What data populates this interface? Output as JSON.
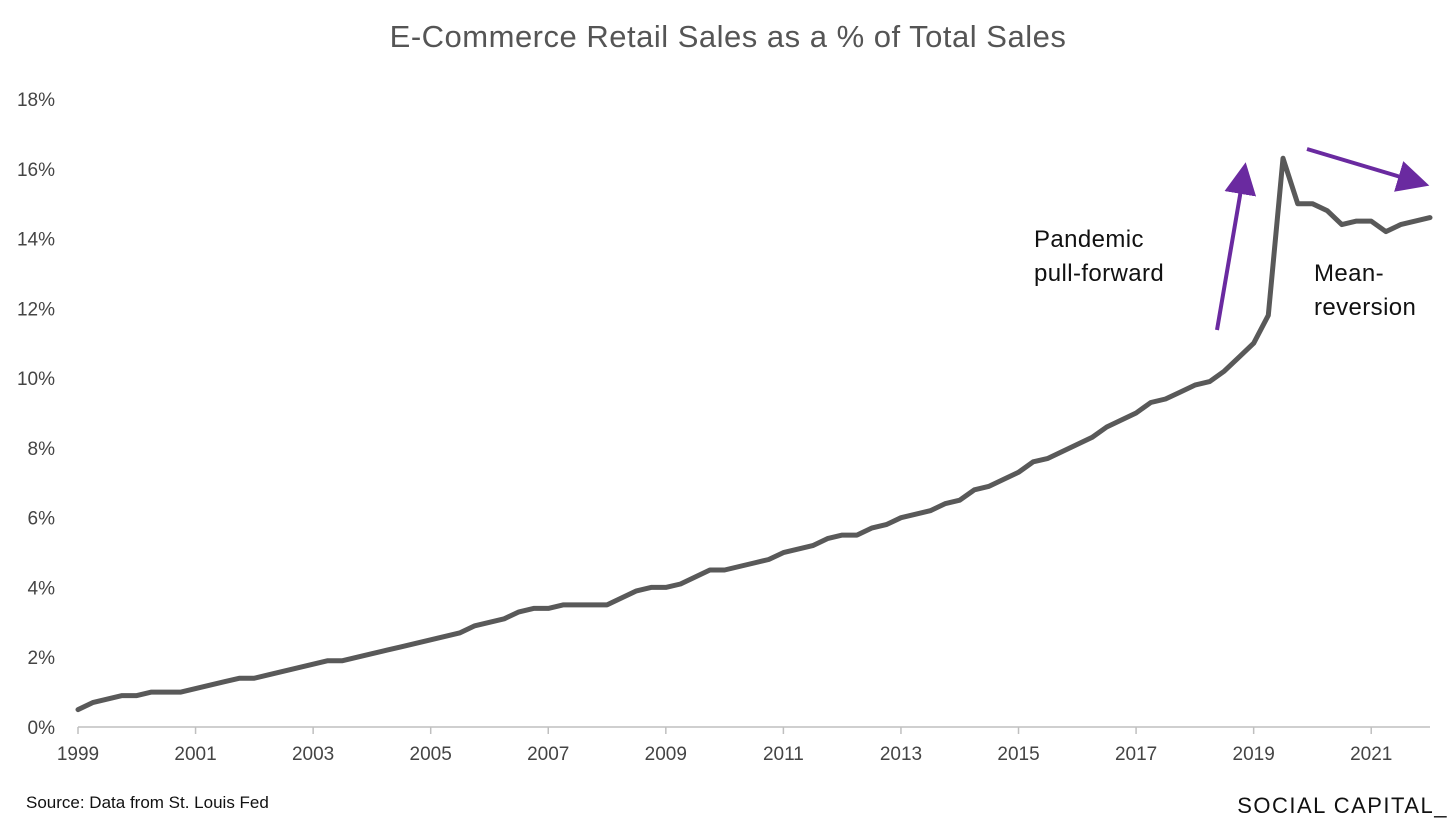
{
  "chart_data": {
    "type": "line",
    "title": "E-Commerce Retail Sales as a % of Total Sales",
    "xlabel": "",
    "ylabel": "",
    "ylim": [
      0,
      18
    ],
    "y_ticks": [
      0,
      2,
      4,
      6,
      8,
      10,
      12,
      14,
      16,
      18
    ],
    "y_tick_labels": [
      "0%",
      "2%",
      "4%",
      "6%",
      "8%",
      "10%",
      "12%",
      "14%",
      "16%",
      "18%"
    ],
    "x_ticks": [
      1999,
      2001,
      2003,
      2005,
      2007,
      2009,
      2011,
      2013,
      2015,
      2017,
      2019,
      2021
    ],
    "x_tick_labels": [
      "1999",
      "2001",
      "2003",
      "2005",
      "2007",
      "2009",
      "2011",
      "2013",
      "2015",
      "2017",
      "2019",
      "2021"
    ],
    "xlim": [
      1999,
      2022
    ],
    "grid": false,
    "line_color": "#595959",
    "series": [
      {
        "x": [
          1999.0,
          1999.25,
          1999.5,
          1999.75,
          2000.0,
          2000.25,
          2000.5,
          2000.75,
          2001.0,
          2001.25,
          2001.5,
          2001.75,
          2002.0,
          2002.25,
          2002.5,
          2002.75,
          2003.0,
          2003.25,
          2003.5,
          2003.75,
          2004.0,
          2004.25,
          2004.5,
          2004.75,
          2005.0,
          2005.25,
          2005.5,
          2005.75,
          2006.0,
          2006.25,
          2006.5,
          2006.75,
          2007.0,
          2007.25,
          2007.5,
          2007.75,
          2008.0,
          2008.25,
          2008.5,
          2008.75,
          2009.0,
          2009.25,
          2009.5,
          2009.75,
          2010.0,
          2010.25,
          2010.5,
          2010.75,
          2011.0,
          2011.25,
          2011.5,
          2011.75,
          2012.0,
          2012.25,
          2012.5,
          2012.75,
          2013.0,
          2013.25,
          2013.5,
          2013.75,
          2014.0,
          2014.25,
          2014.5,
          2014.75,
          2015.0,
          2015.25,
          2015.5,
          2015.75,
          2016.0,
          2016.25,
          2016.5,
          2016.75,
          2017.0,
          2017.25,
          2017.5,
          2017.75,
          2018.0,
          2018.25,
          2018.5,
          2018.75,
          2019.0,
          2019.25,
          2019.5,
          2019.75,
          2020.0,
          2020.25,
          2020.5,
          2020.75,
          2021.0,
          2021.25,
          2021.5,
          2021.75,
          2022.0
        ],
        "values": [
          0.5,
          0.7,
          0.8,
          0.9,
          0.9,
          1.0,
          1.0,
          1.0,
          1.1,
          1.2,
          1.3,
          1.4,
          1.4,
          1.5,
          1.6,
          1.7,
          1.8,
          1.9,
          1.9,
          2.0,
          2.1,
          2.2,
          2.3,
          2.4,
          2.5,
          2.6,
          2.7,
          2.9,
          3.0,
          3.1,
          3.3,
          3.4,
          3.4,
          3.5,
          3.5,
          3.5,
          3.5,
          3.7,
          3.9,
          4.0,
          4.0,
          4.1,
          4.3,
          4.5,
          4.5,
          4.6,
          4.7,
          4.8,
          5.0,
          5.1,
          5.2,
          5.4,
          5.5,
          5.5,
          5.7,
          5.8,
          6.0,
          6.1,
          6.2,
          6.4,
          6.5,
          6.8,
          6.9,
          7.1,
          7.3,
          7.6,
          7.7,
          7.9,
          8.1,
          8.3,
          8.6,
          8.8,
          9.0,
          9.3,
          9.4,
          9.6,
          9.8,
          9.9,
          10.2,
          10.6,
          11.0,
          11.8,
          16.3,
          15.0,
          15.0,
          14.8,
          14.4,
          14.5,
          14.5,
          14.2,
          14.4,
          14.5,
          14.6
        ]
      }
    ],
    "annotations": [
      {
        "id": "pandemic",
        "lines": [
          "Pandemic",
          "pull-forward"
        ],
        "arrow_color": "#6a2aa0"
      },
      {
        "id": "mean",
        "lines": [
          "Mean-",
          "reversion"
        ],
        "arrow_color": "#6a2aa0"
      }
    ]
  },
  "footer": {
    "source": "Source: Data from St. Louis Fed",
    "brand": "SOCIAL CAPITAL_"
  }
}
